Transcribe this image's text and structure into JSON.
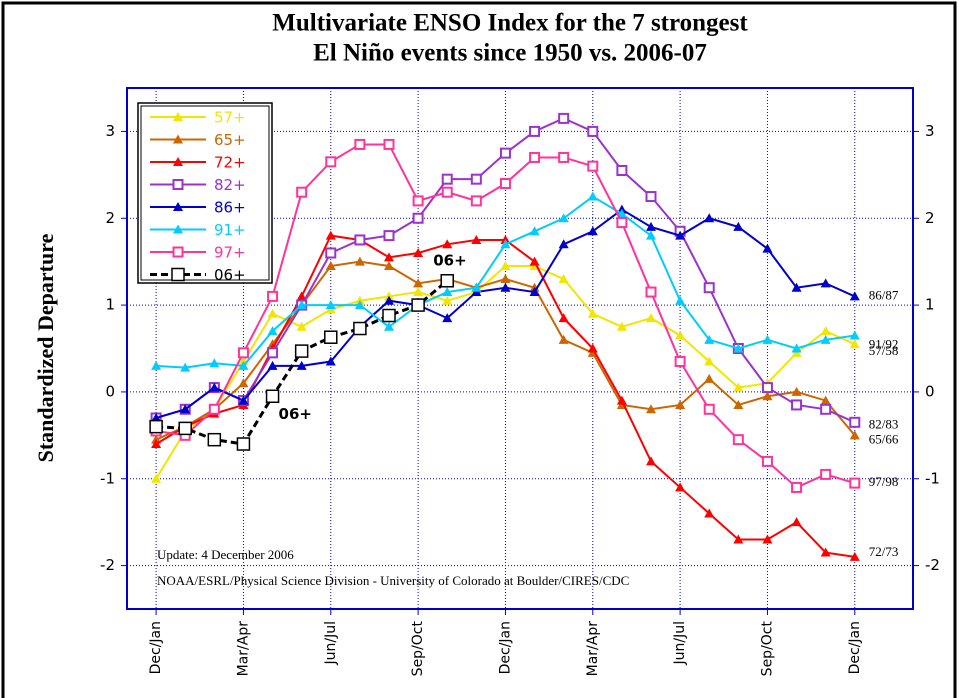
{
  "chart_data": {
    "type": "line",
    "title": [
      "Multivariate ENSO Index for the 7 strongest",
      "El Niño events since 1950 vs. 2006-07"
    ],
    "y_label": "Standardized Departure",
    "categories": [
      "Dec/Jan",
      null,
      null,
      "Mar/Apr",
      null,
      null,
      "Jun/Jul",
      null,
      null,
      "Sep/Oct",
      null,
      null,
      "Dec/Jan",
      null,
      null,
      "Mar/Apr",
      null,
      null,
      "Jun/Jul",
      null,
      null,
      "Sep/Oct",
      null,
      null,
      "Dec/Jan"
    ],
    "ylim": [
      -2.5,
      3.5
    ],
    "yticks": [
      -2,
      -1,
      0,
      1,
      2,
      3
    ],
    "grid": true,
    "legend": "upper left",
    "series": [
      {
        "name": "57+",
        "color": "#f2e600",
        "marker": "triangle",
        "end_label": "57/58",
        "values": [
          -1.0,
          -0.45,
          -0.2,
          0.35,
          0.9,
          0.75,
          0.95,
          1.05,
          1.1,
          1.15,
          1.05,
          1.15,
          1.45,
          1.45,
          1.3,
          0.9,
          0.75,
          0.85,
          0.65,
          0.35,
          0.05,
          0.1,
          0.45,
          0.7,
          0.55
        ]
      },
      {
        "name": "65+",
        "color": "#cc6600",
        "marker": "triangle",
        "end_label": "65/66",
        "values": [
          -0.55,
          -0.4,
          -0.2,
          0.1,
          0.55,
          1.0,
          1.45,
          1.5,
          1.45,
          1.25,
          1.3,
          1.2,
          1.3,
          1.2,
          0.6,
          0.45,
          -0.15,
          -0.2,
          -0.15,
          0.15,
          -0.15,
          -0.05,
          0.0,
          -0.1,
          -0.5
        ]
      },
      {
        "name": "72+",
        "color": "#ff0000",
        "marker": "triangle",
        "end_label": "72/73",
        "values": [
          -0.6,
          -0.4,
          -0.25,
          -0.15,
          0.5,
          1.1,
          1.8,
          1.75,
          1.55,
          1.6,
          1.7,
          1.75,
          1.75,
          1.5,
          0.85,
          0.5,
          -0.1,
          -0.8,
          -1.1,
          -1.4,
          -1.7,
          -1.7,
          -1.5,
          -1.85,
          -1.9
        ]
      },
      {
        "name": "82+",
        "color": "#9933cc",
        "marker": "square",
        "end_label": "82/83",
        "values": [
          -0.3,
          -0.2,
          0.05,
          -0.1,
          0.45,
          1.0,
          1.6,
          1.75,
          1.8,
          2.0,
          2.45,
          2.45,
          2.75,
          3.0,
          3.15,
          3.0,
          2.55,
          2.25,
          1.85,
          1.2,
          0.5,
          0.05,
          -0.15,
          -0.2,
          -0.35
        ]
      },
      {
        "name": "86+",
        "color": "#0000cc",
        "marker": "triangle",
        "end_label": "86/87",
        "values": [
          -0.3,
          -0.2,
          0.05,
          -0.1,
          0.3,
          0.3,
          0.35,
          0.75,
          1.05,
          1.0,
          0.85,
          1.15,
          1.2,
          1.15,
          1.7,
          1.85,
          2.1,
          1.9,
          1.8,
          2.0,
          1.9,
          1.65,
          1.2,
          1.25,
          1.1
        ]
      },
      {
        "name": "91+",
        "color": "#00ccff",
        "marker": "triangle",
        "end_label": "91/92",
        "values": [
          0.3,
          0.28,
          0.33,
          0.3,
          0.7,
          1.0,
          1.0,
          1.0,
          0.75,
          1.0,
          1.15,
          1.2,
          1.7,
          1.85,
          2.0,
          2.25,
          2.05,
          1.8,
          1.05,
          0.6,
          0.5,
          0.6,
          0.5,
          0.6,
          0.65
        ]
      },
      {
        "name": "97+",
        "color": "#ff3399",
        "marker": "square",
        "end_label": "97/98",
        "values": [
          -0.45,
          -0.5,
          -0.2,
          0.45,
          1.1,
          2.3,
          2.65,
          2.85,
          2.85,
          2.2,
          2.3,
          2.2,
          2.4,
          2.7,
          2.7,
          2.6,
          1.95,
          1.15,
          0.35,
          -0.2,
          -0.55,
          -0.8,
          -1.1,
          -0.95,
          -1.05
        ]
      },
      {
        "name": "06+",
        "color": "#000000",
        "marker": "open-square",
        "dash": true,
        "values": [
          -0.4,
          -0.42,
          -0.55,
          -0.6,
          -0.05,
          0.47,
          0.63,
          0.73,
          0.88,
          1.0,
          1.28,
          null,
          null,
          null,
          null,
          null,
          null,
          null,
          null,
          null,
          null,
          null,
          null,
          null,
          null
        ]
      }
    ],
    "annotations": [
      "06+",
      "06+"
    ],
    "notes": [
      "Update: 4 December 2006",
      "NOAA/ESRL/Physical Science Division - University of Colorado at Boulder/CIRES/CDC"
    ]
  }
}
